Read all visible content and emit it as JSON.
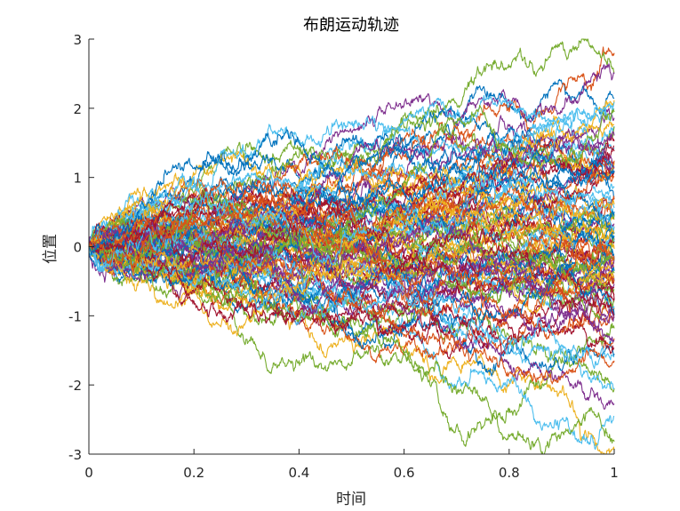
{
  "chart_data": {
    "type": "line",
    "title": "布朗运动轨迹",
    "xlabel": "时间",
    "ylabel": "位置",
    "xlim": [
      0,
      1
    ],
    "ylim": [
      -3,
      3
    ],
    "xticks": [
      "0",
      "0.2",
      "0.4",
      "0.6",
      "0.8",
      "1"
    ],
    "yticks": [
      "3",
      "2",
      "1",
      "0",
      "-1",
      "-2",
      "-3"
    ],
    "grid": false,
    "legend": "none",
    "n_paths": 100,
    "n_steps": 1000,
    "color_cycle": [
      "#0072BD",
      "#D95319",
      "#EDB120",
      "#7E2F8E",
      "#77AC30",
      "#4DBEEE",
      "#A2142F"
    ],
    "series": [
      {
        "values": [
          0,
          0.7,
          0.85,
          1.55,
          2.05,
          2.15
        ]
      },
      {
        "values": [
          0,
          0.3,
          0.75,
          1.3,
          1.95,
          2.8
        ]
      },
      {
        "values": [
          0,
          -0.6,
          -0.95,
          -1.45,
          -2.0,
          -2.95
        ]
      },
      {
        "values": [
          0,
          0.6,
          1.05,
          2.05,
          2.1,
          2.5
        ]
      },
      {
        "values": [
          0,
          -0.35,
          -1.65,
          -1.55,
          -2.4,
          -2.05
        ]
      },
      {
        "values": [
          0,
          -0.15,
          -0.8,
          -1.1,
          -1.95,
          -2.45
        ]
      },
      {
        "values": [
          0,
          0.2,
          0.3,
          0.35,
          0.2,
          0.1
        ]
      },
      {
        "values": [
          0,
          -0.2,
          -0.6,
          -1.2,
          -1.55,
          -1.55
        ]
      }
    ]
  }
}
